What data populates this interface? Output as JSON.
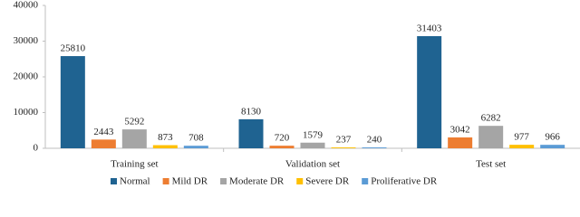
{
  "chart_data": {
    "type": "bar",
    "categories": [
      "Training set",
      "Validation set",
      "Test set"
    ],
    "series": [
      {
        "name": "Normal",
        "color": "#1f6391",
        "values": [
          25810,
          8130,
          31403
        ]
      },
      {
        "name": "Mild DR",
        "color": "#ed7d31",
        "values": [
          2443,
          720,
          3042
        ]
      },
      {
        "name": "Moderate DR",
        "color": "#a5a5a5",
        "values": [
          5292,
          1579,
          6282
        ]
      },
      {
        "name": "Severe DR",
        "color": "#ffc000",
        "values": [
          873,
          237,
          977
        ]
      },
      {
        "name": "Proliferative DR",
        "color": "#5b9bd5",
        "values": [
          708,
          240,
          966
        ]
      }
    ],
    "ylim": [
      0,
      40000
    ],
    "yticks": [
      0,
      10000,
      20000,
      30000,
      40000
    ],
    "grid": false,
    "legend": "bottom"
  }
}
